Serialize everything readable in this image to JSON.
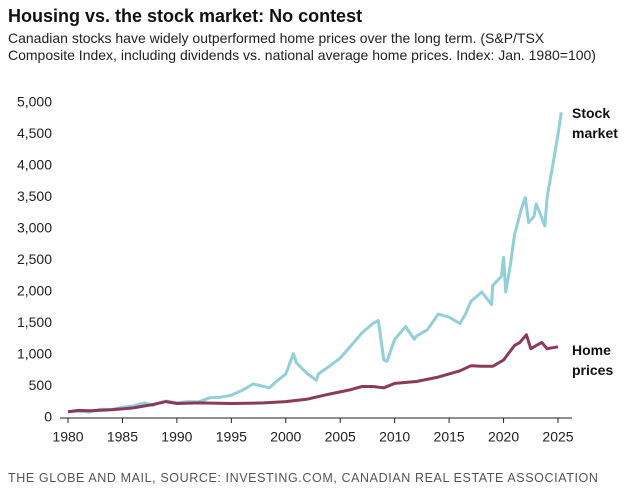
{
  "chart_data": {
    "type": "line",
    "title": "Housing vs. the stock market: No contest",
    "subtitle": "Canadian stocks have widely outperformed home prices over the long term. (S&P/TSX Composite Index, including dividends vs. national average home prices. Index: Jan. 1980=100)",
    "source": "THE GLOBE AND MAIL, SOURCE: INVESTING.COM, CANADIAN REAL ESTATE ASSOCIATION",
    "xlim": [
      1980,
      2025
    ],
    "xticks": [
      1980,
      1985,
      1990,
      1995,
      2000,
      2005,
      2010,
      2015,
      2020,
      2025
    ],
    "ylim": [
      0,
      5000
    ],
    "yticks": [
      0,
      500,
      {
        "value": 1000,
        "label": "1,000"
      },
      {
        "value": 1500,
        "label": "1,500"
      },
      {
        "value": 2000,
        "label": "2,000"
      },
      {
        "value": 2500,
        "label": "2,500"
      },
      {
        "value": 3000,
        "label": "3,000"
      },
      {
        "value": 3500,
        "label": "3,500"
      },
      {
        "value": 4000,
        "label": "4,000"
      },
      {
        "value": 4500,
        "label": "4,500"
      },
      {
        "value": 5000,
        "label": "5,000"
      }
    ],
    "grid": false,
    "series": [
      {
        "name": "Stock market",
        "color": "#93cfd8",
        "x": [
          1980,
          1981,
          1982,
          1983,
          1984,
          1985,
          1986,
          1987,
          1987.8,
          1988,
          1989,
          1990,
          1991,
          1992,
          1993,
          1994,
          1995,
          1996,
          1997,
          1998.5,
          1999,
          2000,
          2000.7,
          2001,
          2002,
          2002.8,
          2003,
          2004,
          2005,
          2006,
          2007,
          2008,
          2008.5,
          2009,
          2009.3,
          2010,
          2011,
          2011.8,
          2012,
          2013,
          2014,
          2015,
          2016,
          2016.5,
          2017,
          2018,
          2018.9,
          2019,
          2019.8,
          2020,
          2020.2,
          2020.6,
          2021,
          2021.6,
          2022,
          2022.3,
          2022.8,
          2023,
          2023.8,
          2024,
          2024.5,
          2025,
          2025.3
        ],
        "values": [
          100,
          110,
          95,
          140,
          135,
          170,
          190,
          240,
          200,
          220,
          270,
          240,
          260,
          255,
          320,
          330,
          360,
          440,
          540,
          480,
          560,
          700,
          1020,
          870,
          700,
          600,
          700,
          820,
          950,
          1150,
          1350,
          1500,
          1550,
          920,
          900,
          1250,
          1450,
          1250,
          1300,
          1400,
          1650,
          1600,
          1500,
          1650,
          1850,
          2000,
          1800,
          2100,
          2250,
          2550,
          2000,
          2400,
          2900,
          3300,
          3500,
          3100,
          3200,
          3400,
          3050,
          3500,
          4000,
          4500,
          4850
        ]
      },
      {
        "name": "Home prices",
        "color": "#8c3a5b",
        "x": [
          1980,
          1981,
          1982,
          1984,
          1986,
          1988,
          1989,
          1990,
          1992,
          1995,
          1998,
          2000,
          2002,
          2004,
          2006,
          2007,
          2008,
          2009,
          2010,
          2012,
          2014,
          2016,
          2017,
          2018,
          2019,
          2020,
          2021,
          2021.5,
          2022.1,
          2022.5,
          2023,
          2023.5,
          2024,
          2025
        ],
        "values": [
          100,
          120,
          115,
          130,
          160,
          220,
          260,
          230,
          240,
          230,
          240,
          260,
          300,
          380,
          450,
          500,
          500,
          480,
          550,
          580,
          650,
          750,
          830,
          820,
          820,
          920,
          1150,
          1200,
          1320,
          1100,
          1150,
          1200,
          1100,
          1130
        ]
      }
    ]
  }
}
